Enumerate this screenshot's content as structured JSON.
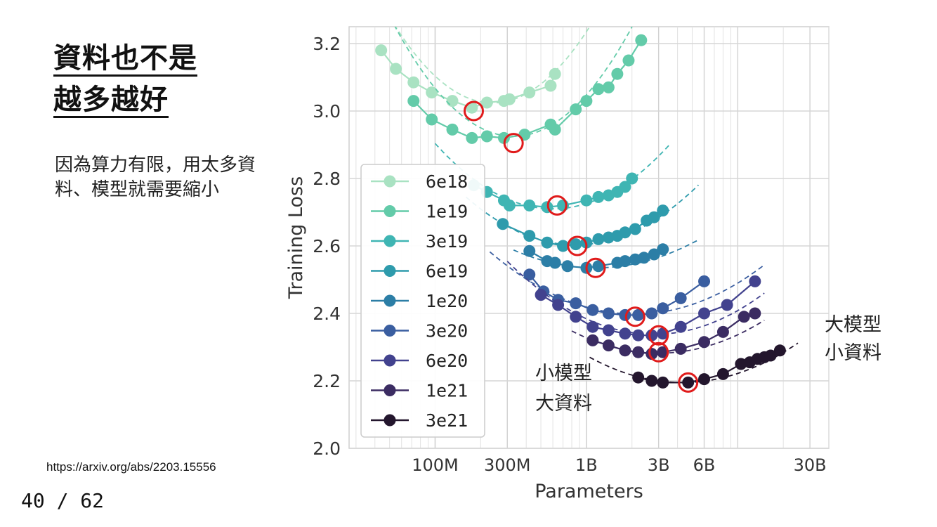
{
  "slide": {
    "title_line1": "資料也不是",
    "title_line2": "越多越好",
    "body_text": "因為算力有限，用太多資料、模型就需要縮小",
    "source_url": "https://arxiv.org/abs/2203.15556",
    "page_current": "40",
    "page_sep": " / ",
    "page_total": "62"
  },
  "chart_data": {
    "type": "line",
    "xlabel": "Parameters",
    "ylabel": "Training Loss",
    "x_scale": "log",
    "xlim": [
      27000000,
      40000000000
    ],
    "ylim": [
      2.0,
      3.25
    ],
    "x_ticks": [
      {
        "value": 100000000,
        "label": "100M"
      },
      {
        "value": 300000000,
        "label": "300M"
      },
      {
        "value": 1000000000,
        "label": "1B"
      },
      {
        "value": 3000000000,
        "label": "3B"
      },
      {
        "value": 6000000000,
        "label": "6B"
      },
      {
        "value": 30000000000,
        "label": "30B"
      }
    ],
    "y_ticks": [
      {
        "value": 2.0,
        "label": "2.0"
      },
      {
        "value": 2.2,
        "label": "2.2"
      },
      {
        "value": 2.4,
        "label": "2.4"
      },
      {
        "value": 2.6,
        "label": "2.6"
      },
      {
        "value": 2.8,
        "label": "2.8"
      },
      {
        "value": 3.0,
        "label": "3.0"
      },
      {
        "value": 3.2,
        "label": "3.2"
      }
    ],
    "grid": true,
    "legend_position": "left",
    "series": [
      {
        "name": "6e18",
        "color": "#a9e2c2",
        "x": [
          44000000,
          55000000,
          72000000,
          95000000,
          130000000,
          175000000,
          220000000,
          285000000,
          310000000,
          420000000,
          580000000,
          620000000
        ],
        "y": [
          3.18,
          3.125,
          3.085,
          3.055,
          3.03,
          3.01,
          3.025,
          3.03,
          3.035,
          3.055,
          3.075,
          3.11
        ],
        "fit": {
          "a": 3.024,
          "v0": 240000000,
          "b": 0.55,
          "xmin": 33000000,
          "xmax": 1050000000
        },
        "optimum": [
          180000000,
          3.0
        ]
      },
      {
        "name": "1e19",
        "color": "#63cba9",
        "x": [
          72000000,
          95000000,
          130000000,
          175000000,
          220000000,
          285000000,
          390000000,
          580000000,
          620000000,
          850000000,
          1000000000,
          1200000000,
          1400000000,
          1600000000,
          1900000000,
          2300000000
        ],
        "y": [
          3.03,
          2.975,
          2.945,
          2.92,
          2.925,
          2.92,
          2.93,
          2.96,
          2.945,
          3.005,
          3.03,
          3.065,
          3.07,
          3.11,
          3.15,
          3.21
        ],
        "fit": {
          "a": 2.925,
          "v0": 330000000,
          "b": 0.53,
          "xmin": 45000000,
          "xmax": 2500000000
        },
        "optimum": [
          330000000,
          2.905
        ]
      },
      {
        "name": "3e19",
        "color": "#3fb5b3",
        "x": [
          180000000,
          220000000,
          285000000,
          310000000,
          420000000,
          550000000,
          700000000,
          1000000000,
          1200000000,
          1400000000,
          1600000000,
          1800000000,
          2000000000
        ],
        "y": [
          2.78,
          2.76,
          2.735,
          2.72,
          2.72,
          2.715,
          2.72,
          2.735,
          2.745,
          2.75,
          2.76,
          2.775,
          2.8
        ],
        "fit": {
          "a": 2.71,
          "v0": 600000000,
          "b": 0.32,
          "xmin": 100000000,
          "xmax": 3500000000
        },
        "optimum": [
          640000000,
          2.72
        ]
      },
      {
        "name": "6e19",
        "color": "#2e9bac",
        "x": [
          280000000,
          420000000,
          550000000,
          700000000,
          850000000,
          1000000000,
          1200000000,
          1400000000,
          1600000000,
          1800000000,
          2100000000,
          2500000000,
          2800000000,
          3200000000
        ],
        "y": [
          2.665,
          2.63,
          2.61,
          2.6,
          2.605,
          2.61,
          2.62,
          2.625,
          2.63,
          2.64,
          2.65,
          2.675,
          2.685,
          2.705
        ],
        "fit": {
          "a": 2.603,
          "v0": 850000000,
          "b": 0.27,
          "xmin": 160000000,
          "xmax": 5500000000
        },
        "optimum": [
          870000000,
          2.6
        ]
      },
      {
        "name": "1e20",
        "color": "#2c7ea6",
        "x": [
          420000000,
          550000000,
          620000000,
          750000000,
          1000000000,
          1200000000,
          1600000000,
          1800000000,
          2100000000,
          2400000000,
          2800000000,
          3200000000
        ],
        "y": [
          2.585,
          2.555,
          2.55,
          2.54,
          2.535,
          2.54,
          2.55,
          2.555,
          2.56,
          2.565,
          2.575,
          2.59
        ],
        "fit": {
          "a": 2.535,
          "v0": 1150000000,
          "b": 0.18,
          "xmin": 330000000,
          "xmax": 5600000000
        },
        "optimum": [
          1150000000,
          2.535
        ]
      },
      {
        "name": "3e20",
        "color": "#3a5ea0",
        "x": [
          420000000,
          520000000,
          650000000,
          850000000,
          1100000000,
          1400000000,
          1800000000,
          2200000000,
          2700000000,
          3200000000,
          4200000000,
          6000000000
        ],
        "y": [
          2.515,
          2.465,
          2.44,
          2.43,
          2.41,
          2.4,
          2.395,
          2.395,
          2.4,
          2.415,
          2.445,
          2.495
        ],
        "fit": {
          "a": 2.398,
          "v0": 2100000000,
          "b": 0.2,
          "xmin": 230000000,
          "xmax": 15000000000
        },
        "optimum": [
          2100000000,
          2.39
        ]
      },
      {
        "name": "6e20",
        "color": "#42428e",
        "x": [
          500000000,
          650000000,
          850000000,
          1100000000,
          1400000000,
          1800000000,
          2200000000,
          2700000000,
          3200000000,
          4200000000,
          6000000000,
          8500000000,
          13000000000
        ],
        "y": [
          2.455,
          2.425,
          2.39,
          2.36,
          2.35,
          2.34,
          2.335,
          2.335,
          2.34,
          2.36,
          2.4,
          2.425,
          2.495
        ],
        "fit": {
          "a": 2.338,
          "v0": 2800000000,
          "b": 0.23,
          "xmin": 300000000,
          "xmax": 15000000000
        },
        "optimum": [
          3000000000,
          2.335
        ]
      },
      {
        "name": "1e21",
        "color": "#3b2c62",
        "x": [
          1100000000,
          1400000000,
          1800000000,
          2200000000,
          2700000000,
          3200000000,
          4200000000,
          6000000000,
          8000000000,
          11000000000,
          13000000000
        ],
        "y": [
          2.32,
          2.305,
          2.29,
          2.285,
          2.28,
          2.285,
          2.295,
          2.315,
          2.345,
          2.39,
          2.4
        ],
        "fit": {
          "a": 2.282,
          "v0": 3000000000,
          "b": 0.2,
          "xmin": 800000000,
          "xmax": 15000000000
        },
        "optimum": [
          3000000000,
          2.285
        ]
      },
      {
        "name": "3e21",
        "color": "#23162d",
        "x": [
          2200000000,
          2700000000,
          3200000000,
          4700000000,
          6000000000,
          8000000000,
          10500000000,
          12000000000,
          13500000000,
          15000000000,
          16500000000,
          19000000000
        ],
        "y": [
          2.21,
          2.2,
          2.195,
          2.195,
          2.205,
          2.22,
          2.25,
          2.255,
          2.265,
          2.27,
          2.275,
          2.29
        ],
        "fit": {
          "a": 2.195,
          "v0": 4300000000,
          "b": 0.2,
          "xmin": 1050000000,
          "xmax": 25000000000
        },
        "optimum": [
          4700000000,
          2.195
        ]
      }
    ],
    "annotations": [
      {
        "text_lines": [
          "小模型",
          "大資料"
        ],
        "position": "lower-left of optimum curve"
      },
      {
        "text_lines": [
          "大模型",
          "小資料"
        ],
        "position": "right of plot"
      }
    ],
    "optimum_marker_color": "#e01b1b"
  }
}
